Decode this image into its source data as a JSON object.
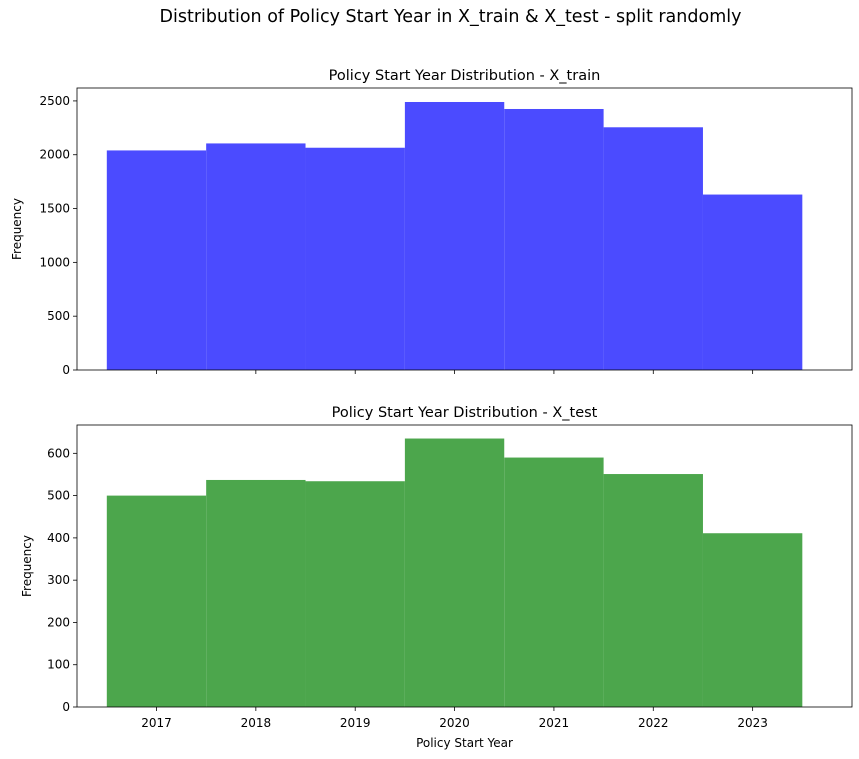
{
  "figure": {
    "suptitle": "Distribution of Policy Start Year in X_train & X_test - split randomly"
  },
  "chart_data": [
    {
      "type": "bar",
      "title": "Policy Start Year Distribution - X_train",
      "xlabel": "",
      "ylabel": "Frequency",
      "categories": [
        "2017",
        "2018",
        "2019",
        "2020",
        "2021",
        "2022",
        "2023"
      ],
      "x": [
        2017,
        2018,
        2019,
        2020,
        2021,
        2022,
        2023
      ],
      "values": [
        2040,
        2105,
        2065,
        2490,
        2425,
        2255,
        1630
      ],
      "xlim": [
        2016.2,
        2024.0
      ],
      "ylim": [
        0,
        2620
      ],
      "yticks": [
        0,
        500,
        1000,
        1500,
        2000,
        2500
      ],
      "xtick_labels_visible": false,
      "color": "#4b4bff",
      "grid": false
    },
    {
      "type": "bar",
      "title": "Policy Start Year Distribution - X_test",
      "xlabel": "Policy Start Year",
      "ylabel": "Frequency",
      "categories": [
        "2017",
        "2018",
        "2019",
        "2020",
        "2021",
        "2022",
        "2023"
      ],
      "x": [
        2017,
        2018,
        2019,
        2020,
        2021,
        2022,
        2023
      ],
      "values": [
        500,
        537,
        534,
        635,
        590,
        551,
        411
      ],
      "xlim": [
        2016.2,
        2024.0
      ],
      "ylim": [
        0,
        667
      ],
      "yticks": [
        0,
        100,
        200,
        300,
        400,
        500,
        600
      ],
      "xtick_labels_visible": true,
      "color": "#4ca64c",
      "grid": false
    }
  ]
}
